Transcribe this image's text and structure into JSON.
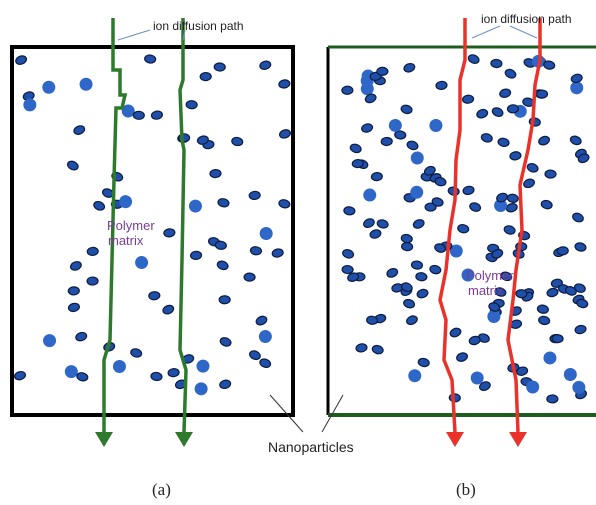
{
  "panels": [
    {
      "annotation": "ion diffusion path",
      "region_label": [
        "Polymer",
        "matrix"
      ],
      "caption": "(a)"
    },
    {
      "annotation": "ion diffusion path",
      "region_label": [
        "Polymer",
        "matrix"
      ],
      "caption": "(b)"
    }
  ],
  "callout": "Nanoparticles"
}
